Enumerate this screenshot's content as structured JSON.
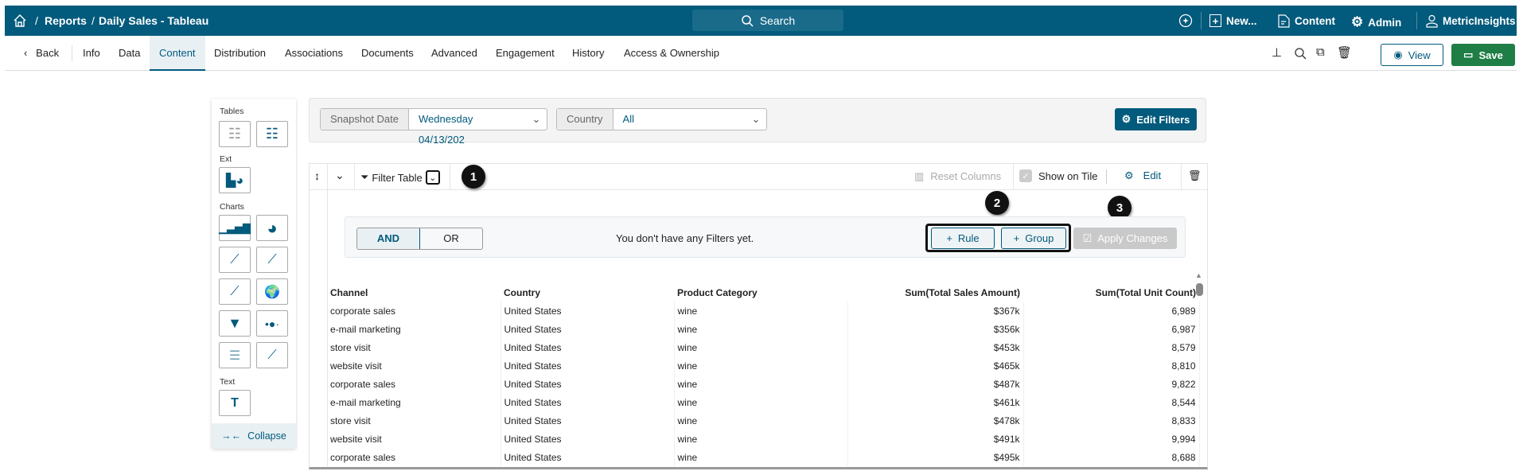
{
  "header": {
    "breadcrumb": [
      "Reports",
      "Daily Sales - Tableau"
    ],
    "search_label": "Search",
    "nav": {
      "new": "New...",
      "content": "Content",
      "admin": "Admin",
      "user": "MetricInsights"
    }
  },
  "tabs": {
    "back": "Back",
    "items": [
      "Info",
      "Data",
      "Content",
      "Distribution",
      "Associations",
      "Documents",
      "Advanced",
      "Engagement",
      "History",
      "Access & Ownership"
    ],
    "active": "Content",
    "view": "View",
    "save": "Save"
  },
  "sidebar": {
    "sections": {
      "tables": "Tables",
      "ext": "Ext",
      "charts": "Charts",
      "text": "Text"
    },
    "collapse": "Collapse"
  },
  "filters": {
    "snapshot_label": "Snapshot Date",
    "snapshot_value": "Wednesday 04/13/202",
    "country_label": "Country",
    "country_value": "All",
    "edit_filters": "Edit Filters"
  },
  "tile": {
    "filter_table": "Filter Table",
    "reset_columns": "Reset Columns",
    "show_on_tile": "Show on Tile",
    "show_on_tile_checked": true,
    "edit": "Edit"
  },
  "filter_builder": {
    "and": "AND",
    "or": "OR",
    "active_logic": "AND",
    "empty": "You don't have any Filters yet.",
    "rule": "Rule",
    "group": "Group",
    "apply": "Apply Changes"
  },
  "badges": [
    "1",
    "2",
    "3"
  ],
  "table": {
    "columns": [
      "Channel",
      "Country",
      "Product Category",
      "Sum(Total Sales Amount)",
      "Sum(Total Unit Count)"
    ],
    "rows": [
      [
        "corporate sales",
        "United States",
        "wine",
        "$367k",
        "6,989"
      ],
      [
        "e-mail marketing",
        "United States",
        "wine",
        "$356k",
        "6,987"
      ],
      [
        "store visit",
        "United States",
        "wine",
        "$453k",
        "8,579"
      ],
      [
        "website visit",
        "United States",
        "wine",
        "$465k",
        "8,810"
      ],
      [
        "corporate sales",
        "United States",
        "wine",
        "$487k",
        "9,822"
      ],
      [
        "e-mail marketing",
        "United States",
        "wine",
        "$461k",
        "8,544"
      ],
      [
        "store visit",
        "United States",
        "wine",
        "$478k",
        "8,833"
      ],
      [
        "website visit",
        "United States",
        "wine",
        "$491k",
        "9,994"
      ],
      [
        "corporate sales",
        "United States",
        "wine",
        "$495k",
        "8,688"
      ]
    ]
  },
  "colors": {
    "brand": "#025a7c",
    "save": "#1e7e45",
    "annotation": "#111111"
  }
}
